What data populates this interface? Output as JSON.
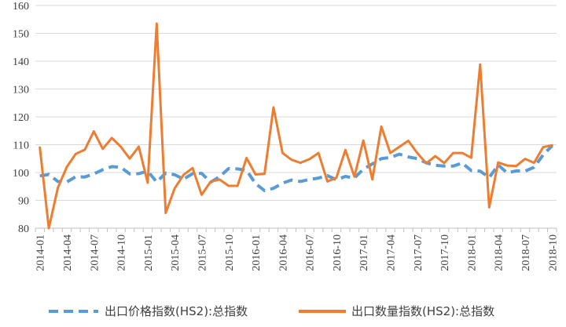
{
  "chart_data": {
    "type": "line",
    "title": "",
    "xlabel": "",
    "ylabel": "",
    "ylim": [
      80,
      160
    ],
    "y_ticks": [
      80,
      90,
      100,
      110,
      120,
      130,
      140,
      150,
      160
    ],
    "grid": "horizontal",
    "legend_position": "bottom",
    "x": [
      "2014-01",
      "2014-02",
      "2014-03",
      "2014-04",
      "2014-05",
      "2014-06",
      "2014-07",
      "2014-08",
      "2014-09",
      "2014-10",
      "2014-11",
      "2014-12",
      "2015-01",
      "2015-02",
      "2015-03",
      "2015-04",
      "2015-05",
      "2015-06",
      "2015-07",
      "2015-08",
      "2015-09",
      "2015-10",
      "2015-11",
      "2015-12",
      "2016-01",
      "2016-02",
      "2016-03",
      "2016-04",
      "2016-05",
      "2016-06",
      "2016-07",
      "2016-08",
      "2016-09",
      "2016-10",
      "2016-11",
      "2016-12",
      "2017-01",
      "2017-02",
      "2017-03",
      "2017-04",
      "2017-05",
      "2017-06",
      "2017-07",
      "2017-08",
      "2017-09",
      "2017-10",
      "2017-11",
      "2017-12",
      "2018-01",
      "2018-02",
      "2018-03",
      "2018-04",
      "2018-05",
      "2018-06",
      "2018-07",
      "2018-08",
      "2018-09",
      "2018-10"
    ],
    "x_tick_labels": [
      "2014-01",
      "2014-04",
      "2014-07",
      "2014-10",
      "2015-01",
      "2015-04",
      "2015-07",
      "2015-10",
      "2016-01",
      "2016-04",
      "2016-07",
      "2016-10",
      "2017-01",
      "2017-04",
      "2017-07",
      "2017-10",
      "2018-01",
      "2018-04",
      "2018-07",
      "2018-10"
    ],
    "series": [
      {
        "name": "出口价格指数(HS2):总指数",
        "color": "#5b9bd5",
        "style": "dashed",
        "values": [
          98.8,
          99.3,
          96.8,
          96.6,
          98.5,
          98.4,
          99.5,
          101.0,
          102.1,
          101.9,
          99.5,
          99.6,
          100.5,
          96.6,
          99.8,
          99.2,
          97.6,
          99.6,
          99.7,
          96.5,
          98.5,
          101.4,
          101.3,
          100.8,
          96.0,
          93.5,
          94.3,
          96.2,
          97.3,
          96.8,
          97.5,
          98.0,
          98.9,
          97.4,
          98.6,
          98.0,
          101.2,
          103.1,
          105.0,
          105.4,
          106.6,
          105.6,
          105.0,
          103.5,
          102.6,
          102.3,
          102.3,
          103.4,
          100.7,
          100.5,
          98.2,
          102.7,
          99.9,
          100.6,
          100.5,
          101.9,
          106.3,
          109.6
        ]
      },
      {
        "name": "出口数量指数(HS2):总指数",
        "color": "#ed7d31",
        "style": "solid",
        "values": [
          109.0,
          80.0,
          94.5,
          102.0,
          106.7,
          108.2,
          114.8,
          108.5,
          112.4,
          109.3,
          105.0,
          109.3,
          96.3,
          153.5,
          85.5,
          94.3,
          99.2,
          101.6,
          92.0,
          96.7,
          97.5,
          95.2,
          95.2,
          105.2,
          99.3,
          99.5,
          123.4,
          107.0,
          104.6,
          103.5,
          104.8,
          107.0,
          96.8,
          98.1,
          108.1,
          98.5,
          111.5,
          97.5,
          116.5,
          107.0,
          109.2,
          111.4,
          107.0,
          103.3,
          105.9,
          103.4,
          107.0,
          107.0,
          105.3,
          138.8,
          87.5,
          103.6,
          102.5,
          102.3,
          104.9,
          103.5,
          109.1,
          109.8
        ]
      }
    ]
  }
}
